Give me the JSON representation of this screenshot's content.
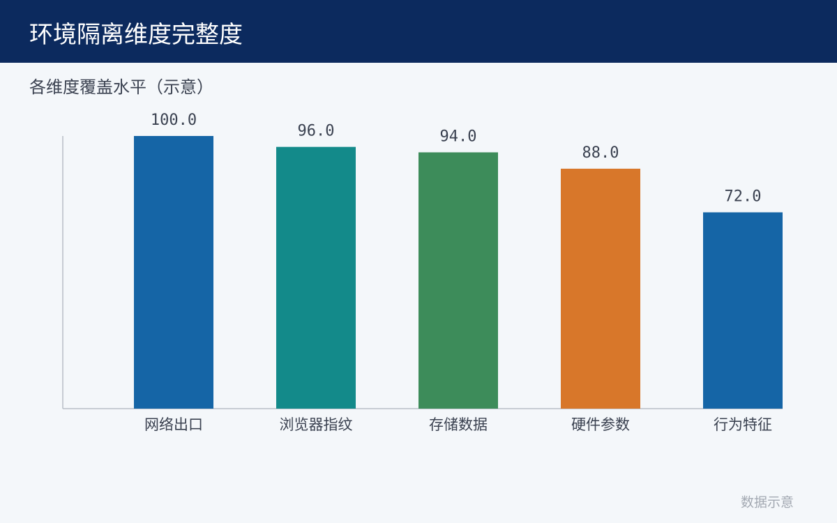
{
  "header": {
    "title": "环境隔离维度完整度"
  },
  "chart_data": {
    "type": "bar",
    "title": "各维度覆盖水平（示意）",
    "categories": [
      "网络出口",
      "浏览器指纹",
      "存储数据",
      "硬件参数",
      "行为特征"
    ],
    "values": [
      100,
      96,
      94,
      88,
      72
    ],
    "value_labels": [
      "100.0",
      "96.0",
      "94.0",
      "88.0",
      "72.0"
    ],
    "colors": [
      "#1565a6",
      "#138a8a",
      "#3d8c5a",
      "#d8772a",
      "#1565a6"
    ],
    "ylim": [
      0,
      100
    ]
  },
  "footer": {
    "note": "数据示意"
  }
}
